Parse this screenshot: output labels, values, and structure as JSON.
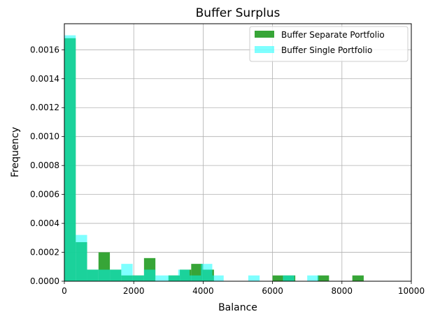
{
  "chart_data": {
    "type": "bar",
    "title": "Buffer Surplus",
    "xlabel": "Balance",
    "ylabel": "Frequency",
    "xlim": [
      0,
      10000
    ],
    "ylim": [
      0,
      0.00178
    ],
    "grid": true,
    "legend_position": "top-right",
    "x_ticks": [
      "0",
      "2000",
      "4000",
      "6000",
      "8000",
      "10000"
    ],
    "x_tick_values": [
      0,
      2000,
      4000,
      6000,
      8000,
      10000
    ],
    "y_ticks": [
      "0.0000",
      "0.0002",
      "0.0004",
      "0.0006",
      "0.0008",
      "0.0010",
      "0.0012",
      "0.0014",
      "0.0016"
    ],
    "y_tick_values": [
      0,
      0.0002,
      0.0004,
      0.0006,
      0.0008,
      0.001,
      0.0012,
      0.0014,
      0.0016
    ],
    "series": [
      {
        "name": "Buffer Separate Portfolio",
        "color": "#2ca02c",
        "alpha": 0.95,
        "bins": [
          [
            0,
            328,
            0.00168
          ],
          [
            328,
            656,
            0.00027
          ],
          [
            656,
            984,
            8e-05
          ],
          [
            984,
            1312,
            0.0002
          ],
          [
            1312,
            1640,
            8e-05
          ],
          [
            1640,
            1968,
            4e-05
          ],
          [
            1968,
            2296,
            4e-05
          ],
          [
            2296,
            2624,
            0.00016
          ],
          [
            3000,
            3328,
            4e-05
          ],
          [
            3328,
            3656,
            8e-05
          ],
          [
            3656,
            3984,
            0.00012
          ],
          [
            3984,
            4312,
            8e-05
          ],
          [
            6000,
            6328,
            4e-05
          ],
          [
            6328,
            6656,
            4e-05
          ],
          [
            7300,
            7628,
            4e-05
          ],
          [
            8300,
            8628,
            4e-05
          ]
        ]
      },
      {
        "name": "Buffer Single Portfolio",
        "color": "#00ffff",
        "alpha": 0.5,
        "bins": [
          [
            0,
            328,
            0.0017
          ],
          [
            328,
            656,
            0.00032
          ],
          [
            656,
            984,
            8e-05
          ],
          [
            984,
            1312,
            8e-05
          ],
          [
            1312,
            1640,
            8e-05
          ],
          [
            1640,
            1968,
            0.00012
          ],
          [
            1968,
            2296,
            4e-05
          ],
          [
            2296,
            2624,
            8e-05
          ],
          [
            2624,
            2952,
            4e-05
          ],
          [
            2952,
            3280,
            4e-05
          ],
          [
            3280,
            3608,
            8e-05
          ],
          [
            3608,
            3936,
            4e-05
          ],
          [
            3936,
            4264,
            0.00012
          ],
          [
            4264,
            4592,
            4e-05
          ],
          [
            5300,
            5628,
            4e-05
          ],
          [
            6300,
            6628,
            4e-05
          ],
          [
            7000,
            7328,
            4e-05
          ]
        ]
      }
    ]
  }
}
